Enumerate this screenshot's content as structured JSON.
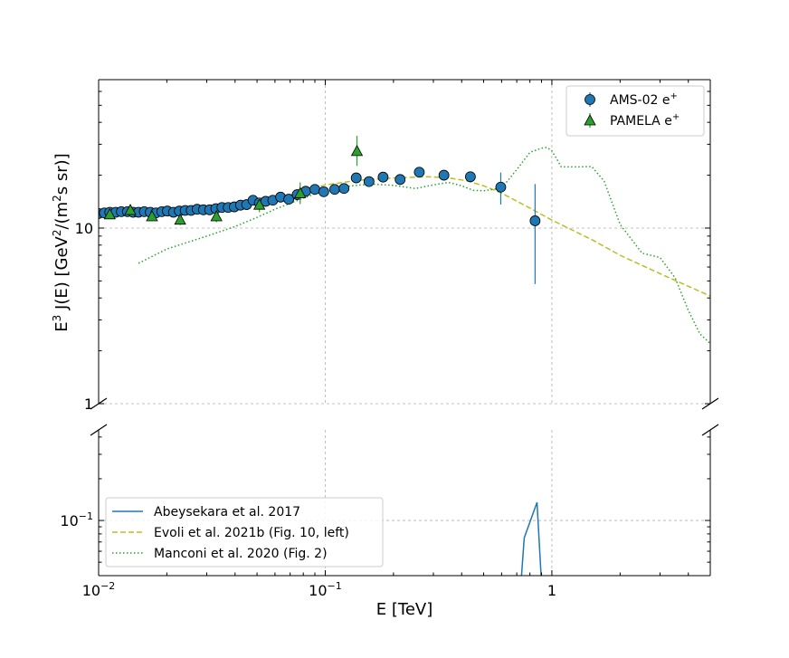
{
  "chart_data": {
    "type": "scatter",
    "xlabel": "E [TeV]",
    "ylabel": "E³ J(E) [GeV²/(m²s sr)]",
    "ylabel_main": "E",
    "ylabel_sup1": "3",
    "ylabel_mid": " J(E) [GeV",
    "ylabel_sup2": "2",
    "ylabel_mid2": "/(m",
    "ylabel_sup3": "2",
    "ylabel_end": "s sr)]",
    "xscale": "log",
    "yscale": "log",
    "xlim": [
      0.01,
      5.0
    ],
    "ylim_top": [
      1,
      70
    ],
    "ylim_bottom": [
      0.04,
      0.45
    ],
    "grid": true,
    "x_tick_labels": [
      "10⁻²",
      "10⁻¹",
      "1"
    ],
    "x_ticks": [
      {
        "value": 0.01,
        "base": "10",
        "exp": "−2"
      },
      {
        "value": 0.1,
        "base": "10",
        "exp": "−1"
      },
      {
        "value": 1,
        "base": "1",
        "exp": ""
      }
    ],
    "y_ticks_top": [
      {
        "value": 10,
        "label": "10"
      },
      {
        "value": 1,
        "label": "1"
      }
    ],
    "y_ticks_bottom": [
      {
        "value": 0.1,
        "base": "10",
        "exp": "−1"
      }
    ],
    "legend_upper": {
      "position": "top-right",
      "entries": [
        {
          "label": "AMS-02 e",
          "sup": "+"
        },
        {
          "label": "PAMELA e",
          "sup": "+"
        }
      ]
    },
    "legend_lower": {
      "position": "lower-left",
      "entries": [
        {
          "label": "Abeysekara et al. 2017"
        },
        {
          "label": "Evoli et al. 2021b (Fig. 10, left)"
        },
        {
          "label": "Manconi et al. 2020 (Fig. 2)"
        }
      ]
    },
    "colors": {
      "ams": "#1f77b4",
      "pamela": "#2ca02c",
      "abeysekara": "#1f77b4",
      "evoli": "#bcbd22",
      "manconi": "#2ca02c",
      "grid": "#b0b0b0"
    },
    "series": [
      {
        "name": "AMS-02 e⁺",
        "kind": "points",
        "marker": "circle",
        "x": [
          0.01,
          0.0106,
          0.0112,
          0.0119,
          0.0126,
          0.0134,
          0.0142,
          0.015,
          0.0159,
          0.0169,
          0.0179,
          0.019,
          0.0201,
          0.0214,
          0.0227,
          0.0241,
          0.0256,
          0.0272,
          0.029,
          0.0309,
          0.0329,
          0.035,
          0.0373,
          0.0397,
          0.0423,
          0.045,
          0.048,
          0.0512,
          0.0546,
          0.0587,
          0.0635,
          0.069,
          0.0752,
          0.082,
          0.09,
          0.0985,
          0.11,
          0.121,
          0.137,
          0.156,
          0.18,
          0.214,
          0.26,
          0.334,
          0.437,
          0.595,
          0.843
        ],
        "y": [
          12.1,
          12.2,
          12.3,
          12.3,
          12.4,
          12.4,
          12.3,
          12.3,
          12.4,
          12.3,
          12.2,
          12.4,
          12.5,
          12.3,
          12.5,
          12.6,
          12.6,
          12.8,
          12.7,
          12.7,
          12.9,
          13.1,
          13.1,
          13.2,
          13.5,
          13.6,
          14.4,
          13.9,
          14.2,
          14.4,
          15.0,
          14.6,
          15.5,
          16.2,
          16.6,
          16.1,
          16.6,
          16.8,
          19.3,
          18.4,
          19.5,
          18.9,
          20.8,
          20.0,
          19.6,
          17.1,
          11.0
        ],
        "yerr_low": [
          0,
          0,
          0,
          0,
          0,
          0,
          0,
          0,
          0,
          0,
          0,
          0,
          0,
          0,
          0,
          0,
          0,
          0,
          0,
          0,
          0,
          0,
          0,
          0,
          0,
          0,
          0,
          0,
          0,
          0,
          0,
          0,
          0,
          0,
          0,
          0,
          0,
          0,
          0,
          0,
          0,
          0,
          0.5,
          1.0,
          1.4,
          3.5,
          6.2
        ],
        "yerr_high": [
          0,
          0,
          0,
          0,
          0,
          0,
          0,
          0,
          0,
          0,
          0,
          0,
          0,
          0,
          0,
          0,
          0,
          0,
          0,
          0,
          0,
          0,
          0,
          0,
          0,
          0,
          0,
          0,
          0,
          0,
          0,
          0,
          0,
          0,
          0,
          0,
          0,
          0,
          0,
          0,
          0,
          0,
          0.5,
          1.0,
          1.4,
          3.6,
          6.8
        ]
      },
      {
        "name": "PAMELA e⁺",
        "kind": "points",
        "marker": "triangle",
        "x": [
          0.0112,
          0.0138,
          0.0172,
          0.0229,
          0.0331,
          0.0512,
          0.0775,
          0.138
        ],
        "y": [
          11.9,
          12.6,
          11.6,
          11.1,
          11.6,
          13.5,
          15.7,
          27.3
        ],
        "yerr_low": [
          0.6,
          0.6,
          0.6,
          0.7,
          0.8,
          1.2,
          2.0,
          4.7
        ],
        "yerr_high": [
          0.6,
          0.6,
          0.6,
          0.7,
          0.8,
          1.3,
          2.5,
          6.2
        ]
      },
      {
        "name": "Abeysekara et al. 2017",
        "kind": "line",
        "style": "solid",
        "panel": "bottom",
        "x": [
          0.725,
          0.755,
          0.86,
          0.905
        ],
        "y": [
          0.03,
          0.075,
          0.135,
          0.03
        ]
      },
      {
        "name": "Evoli et al. 2021b (Fig. 10, left)",
        "kind": "line",
        "style": "dashed",
        "x": [
          0.05,
          0.07,
          0.1,
          0.14,
          0.2,
          0.28,
          0.34,
          0.42,
          0.5,
          0.6,
          0.8,
          1.0,
          1.5,
          2.0,
          3.0,
          5.0
        ],
        "y": [
          14.4,
          15.4,
          17.6,
          18.7,
          19.3,
          19.6,
          19.4,
          18.6,
          17.4,
          15.8,
          13.0,
          11.1,
          8.6,
          7.0,
          5.5,
          4.1
        ]
      },
      {
        "name": "Manconi et al. 2020 (Fig. 2)",
        "kind": "line",
        "style": "dotted",
        "x": [
          0.015,
          0.02,
          0.03,
          0.04,
          0.05,
          0.06,
          0.08,
          0.1,
          0.13,
          0.16,
          0.2,
          0.25,
          0.3,
          0.35,
          0.4,
          0.45,
          0.5,
          0.6,
          0.7,
          0.8,
          0.9,
          0.95,
          1.0,
          1.05,
          1.1,
          1.3,
          1.5,
          1.7,
          2.0,
          2.5,
          3.0,
          3.5,
          4.0,
          4.5,
          5.0
        ],
        "y": [
          6.3,
          7.6,
          9.0,
          10.2,
          11.5,
          12.8,
          14.8,
          16.4,
          17.4,
          17.8,
          17.5,
          16.8,
          17.6,
          18.2,
          17.4,
          16.4,
          16.3,
          16.9,
          21.5,
          27.0,
          28.5,
          28.8,
          27.5,
          24.8,
          22.3,
          22.3,
          22.4,
          18.5,
          10.5,
          7.2,
          6.8,
          5.2,
          3.4,
          2.5,
          2.2
        ]
      }
    ]
  }
}
